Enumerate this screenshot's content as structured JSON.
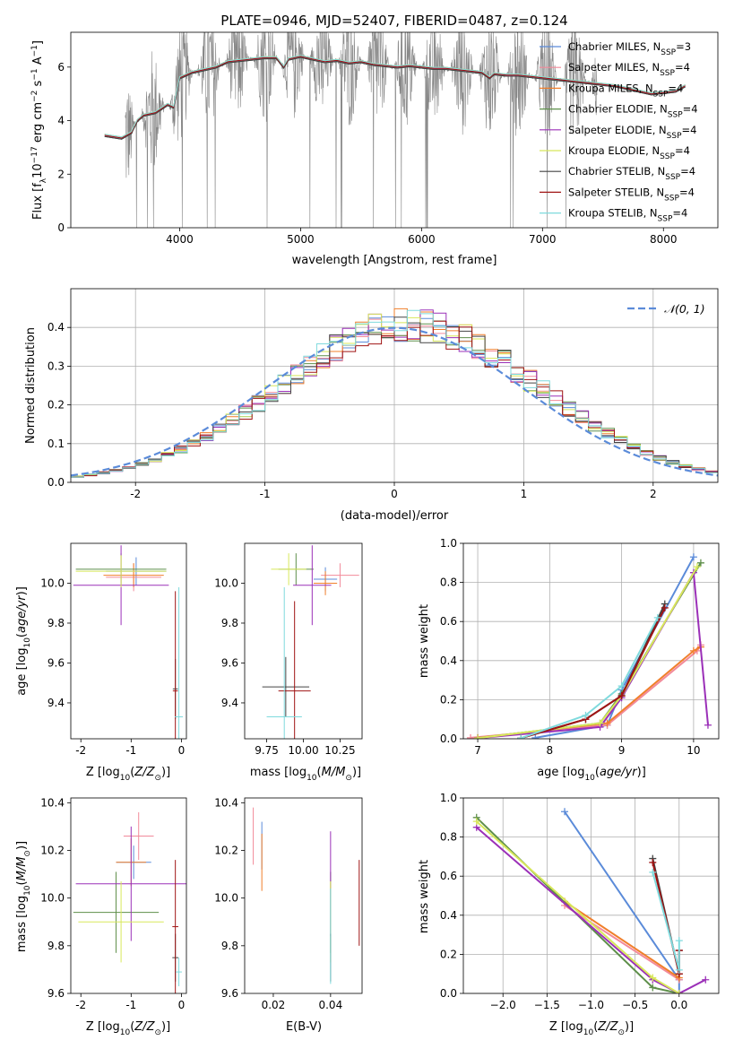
{
  "title": "PLATE=0946, MJD=52407, FIBERID=0487, z=0.124",
  "colors": {
    "chabrier_miles": "#5b8bd9",
    "salpeter_miles": "#f28a9a",
    "kroupa_miles": "#f07f2b",
    "chabrier_elodie": "#5e8f4a",
    "salpeter_elodie": "#9b30b8",
    "kroupa_elodie": "#d8e85a",
    "chabrier_stelib": "#444444",
    "salpeter_stelib": "#a01414",
    "kroupa_stelib": "#7fdadd",
    "data": "#888888",
    "normal": "#5b8bd9"
  },
  "chart_data": [
    {
      "id": "spectrum",
      "type": "line",
      "title": "PLATE=0946, MJD=52407, FIBERID=0487, z=0.124",
      "xlabel": "wavelength [Angstrom, rest frame]",
      "ylabel": "Flux [f_λ 10^-17 erg cm^-2 s^-1 A^-1]",
      "xlim": [
        3100,
        8450
      ],
      "ylim": [
        0,
        7.3
      ],
      "xticks": [
        4000,
        5000,
        6000,
        7000,
        8000
      ],
      "yticks": [
        0,
        2,
        4,
        6
      ],
      "grid": false,
      "legend_position": "right",
      "legend": [
        {
          "key": "chabrier_miles",
          "base": "Chabrier MILES, N",
          "sub": "SSP",
          "tail": "=3"
        },
        {
          "key": "salpeter_miles",
          "base": "Salpeter MILES, N",
          "sub": "SSP",
          "tail": "=4"
        },
        {
          "key": "kroupa_miles",
          "base": "Kroupa MILES, N",
          "sub": "SSP",
          "tail": "=4"
        },
        {
          "key": "chabrier_elodie",
          "base": "Chabrier ELODIE, N",
          "sub": "SSP",
          "tail": "=4"
        },
        {
          "key": "salpeter_elodie",
          "base": "Salpeter ELODIE, N",
          "sub": "SSP",
          "tail": "=4"
        },
        {
          "key": "kroupa_elodie",
          "base": "Kroupa ELODIE, N",
          "sub": "SSP",
          "tail": "=4"
        },
        {
          "key": "chabrier_stelib",
          "base": "Chabrier STELIB, N",
          "sub": "SSP",
          "tail": "=4"
        },
        {
          "key": "salpeter_stelib",
          "base": "Salpeter STELIB, N",
          "sub": "SSP",
          "tail": "=4"
        },
        {
          "key": "kroupa_stelib",
          "base": "Kroupa STELIB, N",
          "sub": "SSP",
          "tail": "=4"
        }
      ],
      "model_x": [
        3380,
        3450,
        3520,
        3600,
        3650,
        3700,
        3800,
        3900,
        3950,
        4000,
        4100,
        4200,
        4300,
        4400,
        4500,
        4600,
        4700,
        4800,
        4860,
        4900,
        5000,
        5100,
        5200,
        5300,
        5400,
        5500,
        5600,
        5700,
        5800,
        5900,
        6000,
        6100,
        6200,
        6300,
        6400,
        6500,
        6563,
        6600,
        6700,
        6800,
        6900,
        7000,
        7100,
        7200,
        7300,
        7400,
        7500,
        7600,
        7700,
        7800,
        7900,
        8000,
        8100,
        8180
      ],
      "model_y": [
        3.45,
        3.4,
        3.35,
        3.55,
        4.0,
        4.2,
        4.3,
        4.6,
        4.5,
        5.6,
        5.8,
        5.9,
        6.0,
        6.2,
        6.25,
        6.3,
        6.35,
        6.35,
        6.0,
        6.3,
        6.4,
        6.3,
        6.2,
        6.25,
        6.15,
        6.2,
        6.1,
        6.05,
        6.0,
        6.05,
        6.0,
        5.95,
        5.95,
        5.9,
        5.85,
        5.8,
        5.6,
        5.75,
        5.7,
        5.7,
        5.65,
        5.6,
        5.55,
        5.5,
        5.45,
        5.4,
        5.35,
        5.3,
        5.2,
        5.1,
        5.0,
        5.05,
        5.1,
        5.3
      ],
      "data_range": [
        3550,
        7450
      ]
    },
    {
      "id": "residuals",
      "type": "line",
      "xlabel": "(data-model)/error",
      "ylabel": "Normed distribution",
      "xlim": [
        -2.5,
        2.5
      ],
      "ylim": [
        0,
        0.5
      ],
      "xticks": [
        -2,
        -1,
        0,
        1,
        2
      ],
      "yticks": [
        0.0,
        0.1,
        0.2,
        0.3,
        0.4
      ],
      "grid": true,
      "legend_position": "top-right",
      "legend_label": "𝒩(0, 1)",
      "bin_width": 0.1
    },
    {
      "id": "age_vs_Z",
      "type": "scatter",
      "xlabel": "Z [log10(Z/Z⊙)]",
      "ylabel": "age [log10(age/yr)]",
      "xlim": [
        -2.2,
        0.1
      ],
      "ylim": [
        9.22,
        10.2
      ],
      "xticks": [
        -2,
        -1,
        0
      ],
      "yticks": [
        9.4,
        9.6,
        9.8,
        10.0
      ],
      "points": [
        {
          "key": "chabrier_miles",
          "x": -0.9,
          "y": 10.06,
          "xe": 0.6,
          "ye": 0.07
        },
        {
          "key": "salpeter_miles",
          "x": -0.95,
          "y": 10.03,
          "xe": 0.55,
          "ye": 0.07
        },
        {
          "key": "kroupa_miles",
          "x": -0.95,
          "y": 10.04,
          "xe": 0.6,
          "ye": 0.06
        },
        {
          "key": "chabrier_elodie",
          "x": -1.2,
          "y": 10.07,
          "xe": 0.9,
          "ye": 0.08
        },
        {
          "key": "salpeter_elodie",
          "x": -1.2,
          "y": 9.99,
          "xe": 0.95,
          "ye": 0.2
        },
        {
          "key": "kroupa_elodie",
          "x": -1.2,
          "y": 10.06,
          "xe": 0.9,
          "ye": 0.08
        },
        {
          "key": "chabrier_stelib",
          "x": -0.12,
          "y": 9.47,
          "xe": 0.05,
          "ye": 0.15
        },
        {
          "key": "salpeter_stelib",
          "x": -0.12,
          "y": 9.46,
          "xe": 0.05,
          "ye": 0.5
        },
        {
          "key": "kroupa_stelib",
          "x": -0.05,
          "y": 9.33,
          "xe": 0.08,
          "ye": 0.65
        }
      ]
    },
    {
      "id": "age_vs_mass",
      "type": "scatter",
      "xlabel": "mass [log10(M/M⊙)]",
      "ylabel": "",
      "xlim": [
        9.6,
        10.4
      ],
      "ylim": [
        9.22,
        10.2
      ],
      "xticks": [
        9.75,
        10.0,
        10.25
      ],
      "yticks": [
        9.4,
        9.6,
        9.8,
        10.0
      ],
      "points": [
        {
          "key": "chabrier_miles",
          "x": 10.15,
          "y": 10.02,
          "xe": 0.08,
          "ye": 0.06
        },
        {
          "key": "salpeter_miles",
          "x": 10.25,
          "y": 10.04,
          "xe": 0.13,
          "ye": 0.06
        },
        {
          "key": "kroupa_miles",
          "x": 10.15,
          "y": 10.0,
          "xe": 0.08,
          "ye": 0.06
        },
        {
          "key": "chabrier_elodie",
          "x": 9.95,
          "y": 10.07,
          "xe": 0.12,
          "ye": 0.08
        },
        {
          "key": "salpeter_elodie",
          "x": 10.06,
          "y": 9.99,
          "xe": 0.13,
          "ye": 0.2
        },
        {
          "key": "kroupa_elodie",
          "x": 9.9,
          "y": 10.07,
          "xe": 0.12,
          "ye": 0.08
        },
        {
          "key": "chabrier_stelib",
          "x": 9.88,
          "y": 9.48,
          "xe": 0.16,
          "ye": 0.15
        },
        {
          "key": "salpeter_stelib",
          "x": 9.94,
          "y": 9.46,
          "xe": 0.11,
          "ye": 0.45
        },
        {
          "key": "kroupa_stelib",
          "x": 9.87,
          "y": 9.33,
          "xe": 0.12,
          "ye": 0.65
        }
      ]
    },
    {
      "id": "massweight_vs_age",
      "type": "line",
      "xlabel": "age [log10(age/yr)]",
      "ylabel": "mass weight",
      "xlim": [
        6.8,
        10.35
      ],
      "ylim": [
        0,
        1.0
      ],
      "xticks": [
        7,
        8,
        9,
        10
      ],
      "yticks": [
        0.0,
        0.2,
        0.4,
        0.6,
        0.8,
        1.0
      ],
      "grid": true,
      "series": [
        {
          "key": "chabrier_miles",
          "x": [
            7.8,
            8.8,
            9.0,
            10.0
          ],
          "y": [
            0.005,
            0.07,
            0.25,
            0.93
          ]
        },
        {
          "key": "salpeter_miles",
          "x": [
            6.9,
            8.8,
            10.05,
            10.1
          ],
          "y": [
            0.005,
            0.07,
            0.45,
            0.48
          ]
        },
        {
          "key": "kroupa_miles",
          "x": [
            7.0,
            8.8,
            10.0,
            10.1
          ],
          "y": [
            0.005,
            0.08,
            0.45,
            0.47
          ]
        },
        {
          "key": "chabrier_elodie",
          "x": [
            7.0,
            8.7,
            9.0,
            10.1
          ],
          "y": [
            0.003,
            0.08,
            0.23,
            0.9
          ]
        },
        {
          "key": "salpeter_elodie",
          "x": [
            7.0,
            8.7,
            9.0,
            10.0,
            10.2
          ],
          "y": [
            0.003,
            0.06,
            0.21,
            0.85,
            0.07
          ]
        },
        {
          "key": "kroupa_elodie",
          "x": [
            7.0,
            8.7,
            9.0,
            10.05
          ],
          "y": [
            0.003,
            0.08,
            0.22,
            0.88
          ]
        },
        {
          "key": "chabrier_stelib",
          "x": [
            7.6,
            8.5,
            9.0,
            9.6
          ],
          "y": [
            0.003,
            0.1,
            0.22,
            0.69
          ]
        },
        {
          "key": "salpeter_stelib",
          "x": [
            7.6,
            8.5,
            9.0,
            9.6
          ],
          "y": [
            0.003,
            0.1,
            0.22,
            0.67
          ]
        },
        {
          "key": "kroupa_stelib",
          "x": [
            7.6,
            8.5,
            9.0,
            9.5
          ],
          "y": [
            0.003,
            0.12,
            0.27,
            0.62
          ]
        }
      ]
    },
    {
      "id": "mass_vs_Z",
      "type": "scatter",
      "xlabel": "Z [log10(Z/Z⊙)]",
      "ylabel": "mass [log10(M/M⊙)]",
      "xlim": [
        -2.2,
        0.1
      ],
      "ylim": [
        9.6,
        10.42
      ],
      "xticks": [
        -2,
        -1,
        0
      ],
      "yticks": [
        9.6,
        9.8,
        10.0,
        10.2,
        10.4
      ],
      "points": [
        {
          "key": "chabrier_miles",
          "x": -0.95,
          "y": 10.15,
          "xe": 0.35,
          "ye": 0.07
        },
        {
          "key": "salpeter_miles",
          "x": -0.85,
          "y": 10.26,
          "xe": 0.3,
          "ye": 0.1
        },
        {
          "key": "kroupa_miles",
          "x": -1.0,
          "y": 10.15,
          "xe": 0.3,
          "ye": 0.1
        },
        {
          "key": "chabrier_elodie",
          "x": -1.3,
          "y": 9.94,
          "xe": 0.85,
          "ye": 0.17
        },
        {
          "key": "salpeter_elodie",
          "x": -1.0,
          "y": 10.06,
          "xe": 1.1,
          "ye": 0.24
        },
        {
          "key": "kroupa_elodie",
          "x": -1.2,
          "y": 9.9,
          "xe": 0.85,
          "ye": 0.17
        },
        {
          "key": "chabrier_stelib",
          "x": -0.12,
          "y": 9.75,
          "xe": 0.06,
          "ye": 0.1
        },
        {
          "key": "salpeter_stelib",
          "x": -0.12,
          "y": 9.88,
          "xe": 0.06,
          "ye": 0.28
        },
        {
          "key": "kroupa_stelib",
          "x": -0.05,
          "y": 9.69,
          "xe": 0.06,
          "ye": 0.06
        }
      ]
    },
    {
      "id": "mass_vs_EBV",
      "type": "scatter",
      "xlabel": "E(B-V)",
      "ylabel": "",
      "xlim": [
        0.01,
        0.051
      ],
      "ylim": [
        9.6,
        10.42
      ],
      "xticks": [
        0.02,
        0.04
      ],
      "yticks": [
        9.6,
        9.8,
        10.0,
        10.2,
        10.4
      ],
      "points": [
        {
          "key": "chabrier_miles",
          "x": 0.016,
          "y": 10.22,
          "xe": 0,
          "ye": 0.1
        },
        {
          "key": "salpeter_miles",
          "x": 0.013,
          "y": 10.26,
          "xe": 0,
          "ye": 0.12
        },
        {
          "key": "kroupa_miles",
          "x": 0.016,
          "y": 10.15,
          "xe": 0,
          "ye": 0.12
        },
        {
          "key": "chabrier_elodie",
          "x": 0.04,
          "y": 9.94,
          "xe": 0,
          "ye": 0.17
        },
        {
          "key": "salpeter_elodie",
          "x": 0.04,
          "y": 10.06,
          "xe": 0,
          "ye": 0.22
        },
        {
          "key": "kroupa_elodie",
          "x": 0.04,
          "y": 9.9,
          "xe": 0,
          "ye": 0.17
        },
        {
          "key": "chabrier_stelib",
          "x": 0.04,
          "y": 9.75,
          "xe": 0,
          "ye": 0.1
        },
        {
          "key": "salpeter_stelib",
          "x": 0.05,
          "y": 9.98,
          "xe": 0,
          "ye": 0.18
        },
        {
          "key": "kroupa_stelib",
          "x": 0.04,
          "y": 9.84,
          "xe": 0,
          "ye": 0.2
        }
      ]
    },
    {
      "id": "massweight_vs_Z",
      "type": "line",
      "xlabel": "Z [log10(Z/Z⊙)]",
      "ylabel": "mass weight",
      "xlim": [
        -2.45,
        0.45
      ],
      "ylim": [
        0,
        1.0
      ],
      "xticks": [
        -2.0,
        -1.5,
        -1.0,
        -0.5,
        0.0
      ],
      "yticks": [
        0.0,
        0.2,
        0.4,
        0.6,
        0.8,
        1.0
      ],
      "grid": true,
      "series": [
        {
          "key": "chabrier_miles",
          "x": [
            -1.3,
            0.0,
            0.0
          ],
          "y": [
            0.93,
            0.07,
            0.0
          ]
        },
        {
          "key": "salpeter_miles",
          "x": [
            -1.3,
            0.0,
            0.0
          ],
          "y": [
            0.45,
            0.07,
            0.22
          ]
        },
        {
          "key": "kroupa_miles",
          "x": [
            -1.3,
            0.0,
            0.0
          ],
          "y": [
            0.47,
            0.08,
            0.1
          ]
        },
        {
          "key": "chabrier_elodie",
          "x": [
            -2.3,
            -0.3,
            0.0
          ],
          "y": [
            0.9,
            0.03,
            0.0
          ]
        },
        {
          "key": "salpeter_elodie",
          "x": [
            -2.3,
            -0.3,
            0.0,
            0.3
          ],
          "y": [
            0.85,
            0.07,
            0.0,
            0.07
          ]
        },
        {
          "key": "kroupa_elodie",
          "x": [
            -2.3,
            -0.3,
            0.0
          ],
          "y": [
            0.88,
            0.08,
            0.0
          ]
        },
        {
          "key": "chabrier_stelib",
          "x": [
            -0.3,
            0.0,
            0.0
          ],
          "y": [
            0.69,
            0.1,
            0.22
          ]
        },
        {
          "key": "salpeter_stelib",
          "x": [
            -0.3,
            0.0,
            0.0
          ],
          "y": [
            0.67,
            0.1,
            0.22
          ]
        },
        {
          "key": "kroupa_stelib",
          "x": [
            -0.3,
            0.0,
            0.0
          ],
          "y": [
            0.62,
            0.12,
            0.27
          ]
        }
      ]
    }
  ]
}
